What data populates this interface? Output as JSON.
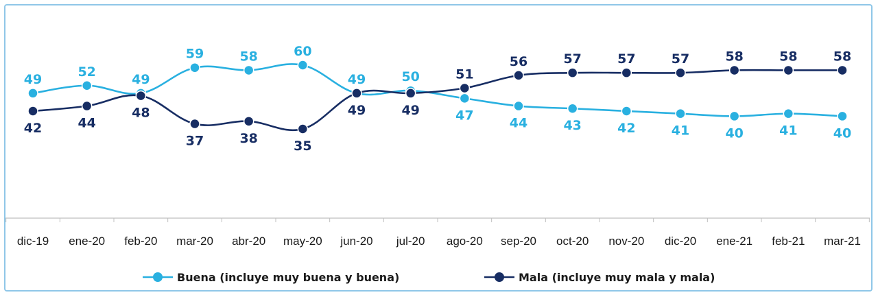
{
  "chart_data": {
    "type": "line",
    "categories": [
      "dic-19",
      "ene-20",
      "feb-20",
      "mar-20",
      "abr-20",
      "may-20",
      "jun-20",
      "jul-20",
      "ago-20",
      "sep-20",
      "oct-20",
      "nov-20",
      "dic-20",
      "ene-21",
      "feb-21",
      "mar-21"
    ],
    "series": [
      {
        "name": "Buena (incluye muy buena y buena)",
        "color": "#29b0e0",
        "values": [
          49,
          52,
          49,
          59,
          58,
          60,
          49,
          50,
          47,
          44,
          43,
          42,
          41,
          40,
          41,
          40
        ]
      },
      {
        "name": "Mala (incluye muy mala y mala)",
        "color": "#172d63",
        "values": [
          42,
          44,
          48,
          37,
          38,
          35,
          49,
          49,
          51,
          56,
          57,
          57,
          57,
          58,
          58,
          58
        ]
      }
    ],
    "title": "",
    "xlabel": "",
    "ylabel": "",
    "ylim": [
      20,
      70
    ],
    "grid": false,
    "legend": "bottom"
  }
}
